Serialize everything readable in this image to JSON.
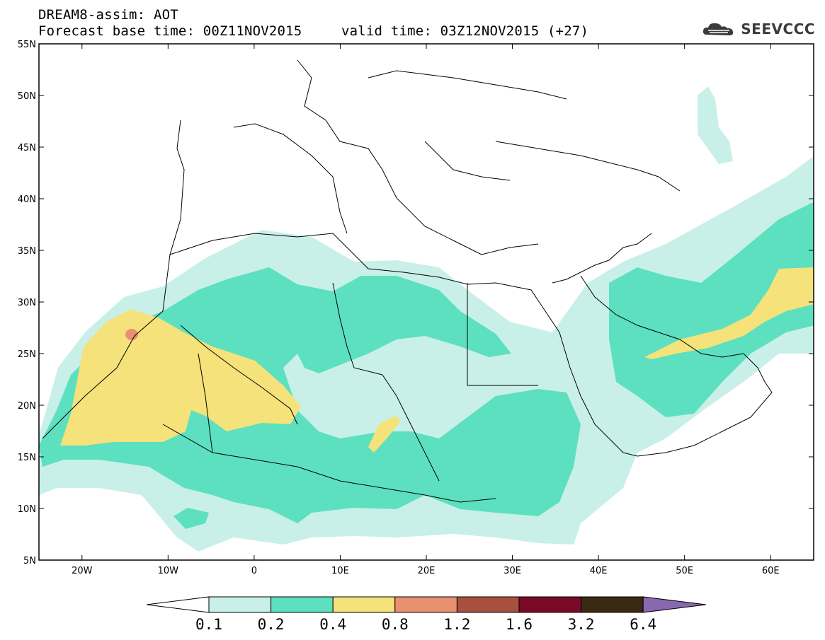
{
  "header": {
    "title": "DREAM8-assim: AOT",
    "base_time": "Forecast base time: 00Z11NOV2015",
    "valid_time": "valid time: 03Z12NOV2015 (+27)",
    "logo_text": "SEEVCCC"
  },
  "map": {
    "lon_range": [
      -25,
      65
    ],
    "lat_range": [
      5,
      55
    ],
    "lat_ticks": [
      "5N",
      "10N",
      "15N",
      "20N",
      "25N",
      "30N",
      "35N",
      "40N",
      "45N",
      "50N",
      "55N"
    ],
    "lon_ticks": [
      "20W",
      "10W",
      "0",
      "10E",
      "20E",
      "30E",
      "40E",
      "50E",
      "60E"
    ]
  },
  "legend": {
    "labels": [
      "0.1",
      "0.2",
      "0.4",
      "0.8",
      "1.2",
      "1.6",
      "3.2",
      "6.4"
    ],
    "colors": [
      "#ffffff",
      "#c8f0e8",
      "#5ce0c0",
      "#f5e27a",
      "#e89070",
      "#a85040",
      "#7a0a28",
      "#3a2a14",
      "#8a68b0"
    ]
  }
}
